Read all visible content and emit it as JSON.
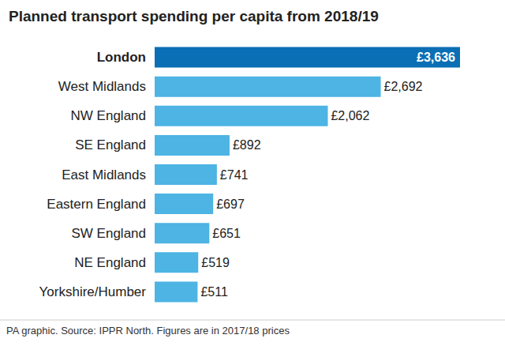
{
  "chart_data": {
    "type": "bar",
    "orientation": "horizontal",
    "title": "Planned transport spending per capita from 2018/19",
    "annotations": [
      "PA graphic. Source: IPPR North. Figures are in 2017/18 prices"
    ],
    "categories": [
      "London",
      "West Midlands",
      "NW England",
      "SE England",
      "East Midlands",
      "Eastern England",
      "SW England",
      "NE England",
      "Yorkshire/Humber"
    ],
    "values": [
      3636,
      2692,
      2062,
      892,
      741,
      697,
      651,
      519,
      511
    ],
    "value_labels": [
      "£3,636",
      "£2,692",
      "£2,062",
      "£892",
      "£741",
      "£697",
      "£651",
      "£519",
      "£511"
    ],
    "colors": [
      "#0a6fb4",
      "#4db4e4",
      "#4db4e4",
      "#4db4e4",
      "#4db4e4",
      "#4db4e4",
      "#4db4e4",
      "#4db4e4",
      "#4db4e4"
    ],
    "data_labels": true,
    "xlim": [
      0,
      3636
    ],
    "xticks": [
      0,
      3636
    ],
    "grid": false,
    "tick_labels": false
  }
}
